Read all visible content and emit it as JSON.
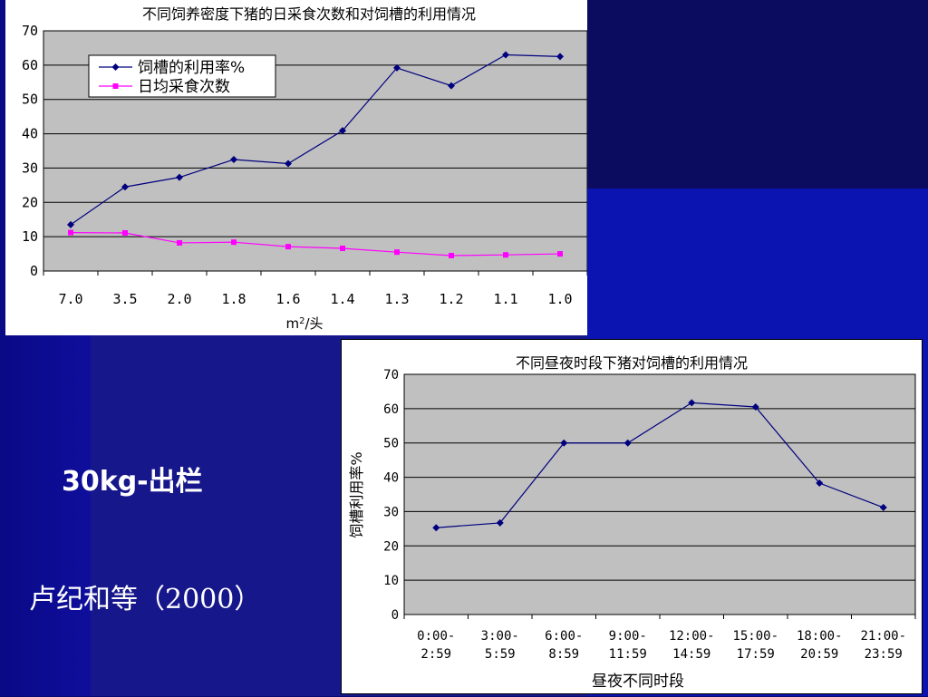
{
  "side": {
    "range": "30kg-出栏",
    "reference": "卢纪和等（2000）"
  },
  "chart_data": [
    {
      "type": "line",
      "title": "不同饲养密度下猪的日采食次数和对饲槽的利用情况",
      "xlabel": "m²/头",
      "ylabel": "",
      "categories": [
        "7.0",
        "3.5",
        "2.0",
        "1.8",
        "1.6",
        "1.4",
        "1.3",
        "1.2",
        "1.1",
        "1.0"
      ],
      "series": [
        {
          "name": "饲槽的利用率%",
          "color": "#00007f",
          "marker": "diamond",
          "values": [
            13.5,
            24.5,
            27.3,
            32.5,
            31.3,
            40.9,
            59.2,
            54.0,
            63.0,
            62.5
          ]
        },
        {
          "name": "日均采食次数",
          "color": "#ff00ff",
          "marker": "square",
          "values": [
            11.2,
            11.1,
            8.2,
            8.4,
            7.1,
            6.6,
            5.5,
            4.5,
            4.7,
            5.0
          ]
        }
      ],
      "ylim": [
        0,
        70
      ],
      "yticks": [
        0,
        10,
        20,
        30,
        40,
        50,
        60,
        70
      ],
      "grid": true,
      "legend": "top-left"
    },
    {
      "type": "line",
      "title": "不同昼夜时段下猪对饲槽的利用情况",
      "xlabel": "昼夜不同时段",
      "ylabel": "饲槽利用率%",
      "categories": [
        [
          "0:00-",
          "2:59"
        ],
        [
          "3:00-",
          "5:59"
        ],
        [
          "6:00-",
          "8:59"
        ],
        [
          "9:00-",
          "11:59"
        ],
        [
          "12:00-",
          "14:59"
        ],
        [
          "15:00-",
          "17:59"
        ],
        [
          "18:00-",
          "20:59"
        ],
        [
          "21:00-",
          "23:59"
        ]
      ],
      "series": [
        {
          "color": "#00007f",
          "marker": "diamond",
          "values": [
            25.3,
            26.7,
            50.0,
            50.0,
            61.7,
            60.5,
            38.3,
            31.2
          ]
        }
      ],
      "ylim": [
        0,
        70
      ],
      "yticks": [
        0,
        10,
        20,
        30,
        40,
        50,
        60,
        70
      ],
      "grid": true,
      "legend": "none"
    }
  ]
}
